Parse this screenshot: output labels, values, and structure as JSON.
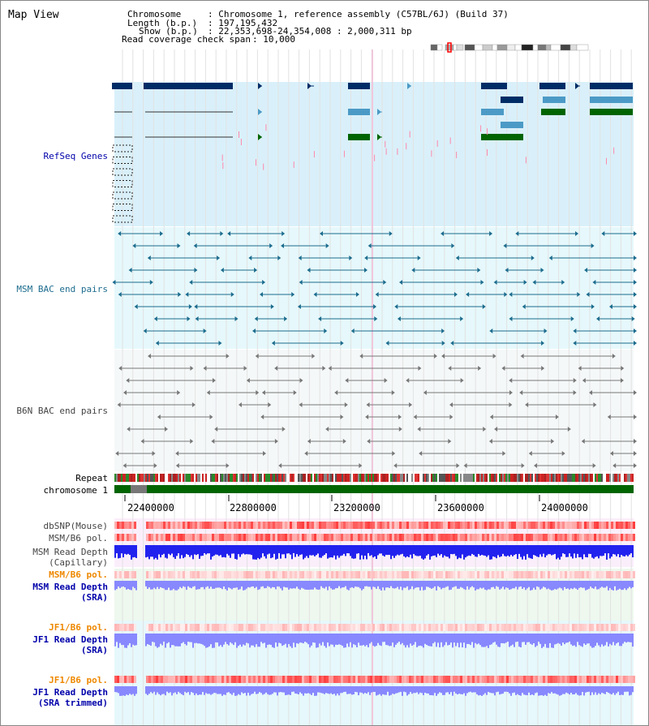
{
  "title": "Map View",
  "info": {
    "chromosome_label": "Chromosome",
    "chromosome_value": ": Chromosome 1, reference assembly (C57BL/6J) (Build 37)",
    "length_label": "Length (b.p.)",
    "length_value": ": 197,195,432",
    "show_label": "Show (b.p.)",
    "show_value": ": 22,353,698-24,354,008 : 2,000,311 bp",
    "coverage_label": "Read coverage check span",
    "coverage_value": ": 10,000"
  },
  "tracks": {
    "refseq": "RefSeq Genes",
    "msm_bac": "MSM BAC end pairs",
    "b6n_bac": "B6N BAC end pairs",
    "repeat": "Repeat",
    "chromosome": "chromosome 1",
    "dbsnp": "dbSNP(Mouse)",
    "msm_b6_pol_1": "MSM/B6 pol.",
    "msm_read_depth_cap_1": "MSM Read Depth",
    "msm_read_depth_cap_2": "(Capillary)",
    "msm_b6_pol_2": "MSM/B6 pol.",
    "msm_read_depth_sra_1": "MSM Read Depth",
    "msm_read_depth_sra_2": "(SRA)",
    "jf1_b6_pol_1": "JF1/B6 pol.",
    "jf1_read_depth_sra_1": "JF1 Read Depth",
    "jf1_read_depth_sra_2": "(SRA)",
    "jf1_b6_pol_2": "JF1/B6 pol.",
    "jf1_read_depth_trim_1": "JF1 Read Depth",
    "jf1_read_depth_trim_2": "(SRA trimmed)"
  },
  "ruler_ticks": [
    "22400000",
    "22800000",
    "23200000",
    "23600000",
    "24000000"
  ],
  "colors": {
    "refseq_bg": "#d9f0fa",
    "msm_bac_bg": "#e6f8fb",
    "b6n_bac_bg": "#f5f8f9",
    "gene_dark": "#002c66",
    "gene_mid": "#4b9ac6",
    "gene_green": "#006400",
    "chromosome_bar": "#006400",
    "msm_pair": "#1c6c8e",
    "b6n_pair": "#777777",
    "pol_red": "#ff3333",
    "depth_blue": "#2222ee",
    "depth_light": "#8888ff",
    "label_blue": "#0000aa",
    "label_teal": "#1c6c8e",
    "label_orange": "#ee8800",
    "label_gray": "#444444"
  }
}
